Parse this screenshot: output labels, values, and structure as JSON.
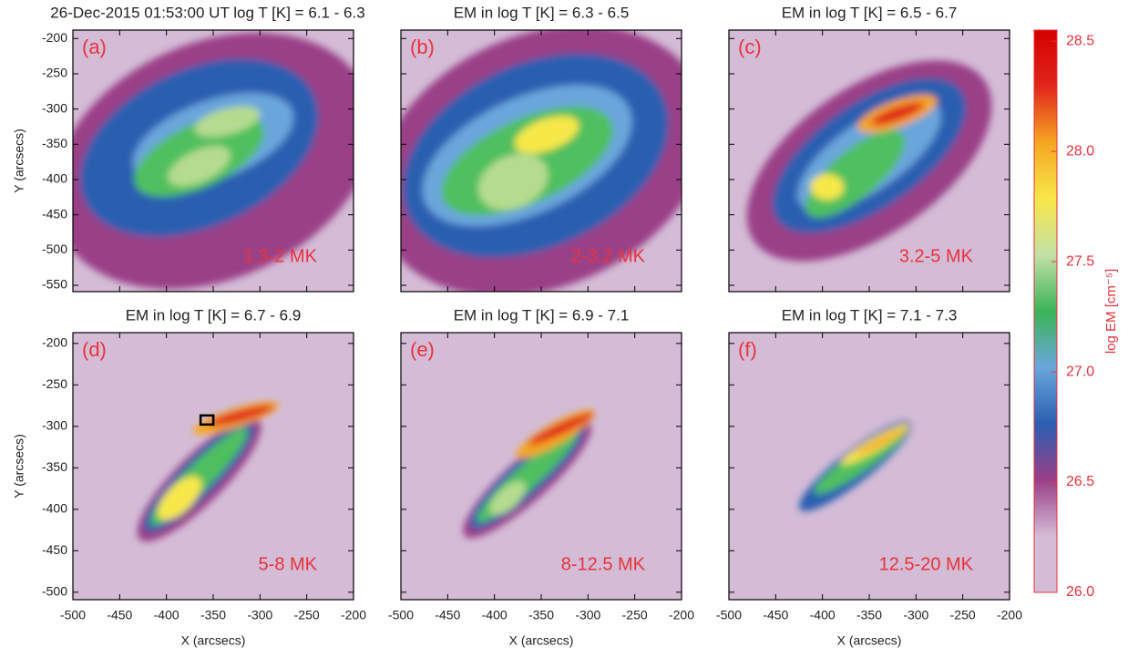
{
  "chart_data": [
    {
      "type": "heatmap",
      "title": "26-Dec-2015 01:53:00 UT log T [K] = 6.1 - 6.3",
      "panel_label": "(a)",
      "annotation": "1.3-2 MK",
      "ylabel": "Y (arcsecs)",
      "xlim": [
        -500,
        -200
      ],
      "xticks": [
        -500,
        -450,
        -400,
        -350,
        -300,
        -250,
        -200
      ],
      "ylim": [
        -559,
        -188
      ],
      "yticks": [
        -550,
        -500,
        -450,
        -400,
        -350,
        -300,
        -250,
        -200
      ]
    },
    {
      "type": "heatmap",
      "title": "EM in log T [K] = 6.3 - 6.5",
      "panel_label": "(b)",
      "annotation": "2-3.2 MK",
      "xlim": [
        -500,
        -200
      ],
      "xticks": [
        -500,
        -450,
        -400,
        -350,
        -300,
        -250,
        -200
      ],
      "ylim": [
        -559,
        -188
      ],
      "yticks": [
        -550,
        -500,
        -450,
        -400,
        -350,
        -300,
        -250,
        -200
      ]
    },
    {
      "type": "heatmap",
      "title": "EM in log T [K] = 6.5 - 6.7",
      "panel_label": "(c)",
      "annotation": "3.2-5 MK",
      "xlim": [
        -500,
        -200
      ],
      "xticks": [
        -500,
        -450,
        -400,
        -350,
        -300,
        -250,
        -200
      ],
      "ylim": [
        -559,
        -188
      ],
      "yticks": [
        -550,
        -500,
        -450,
        -400,
        -350,
        -300,
        -250,
        -200
      ]
    },
    {
      "type": "heatmap",
      "title": "EM in log T [K] = 6.7 - 6.9",
      "panel_label": "(d)",
      "annotation": "5-8 MK",
      "ylabel": "Y (arcsecs)",
      "xlabel": "X (arcsecs)",
      "xlim": [
        -500,
        -200
      ],
      "xticks": [
        -500,
        -450,
        -400,
        -350,
        -300,
        -250,
        -200
      ],
      "ylim": [
        -509,
        -187
      ],
      "yticks": [
        -500,
        -450,
        -400,
        -350,
        -300,
        -250,
        -200
      ]
    },
    {
      "type": "heatmap",
      "title": "EM in log T [K] = 6.9 - 7.1",
      "panel_label": "(e)",
      "annotation": "8-12.5 MK",
      "xlabel": "X (arcsecs)",
      "xlim": [
        -500,
        -200
      ],
      "xticks": [
        -500,
        -450,
        -400,
        -350,
        -300,
        -250,
        -200
      ],
      "ylim": [
        -509,
        -187
      ],
      "yticks": [
        -500,
        -450,
        -400,
        -350,
        -300,
        -250,
        -200
      ]
    },
    {
      "type": "heatmap",
      "title": "EM in log T [K] = 7.1 - 7.3",
      "panel_label": "(f)",
      "annotation": "12.5-20 MK",
      "xlabel": "X (arcsecs)",
      "xlim": [
        -500,
        -200
      ],
      "xticks": [
        -500,
        -450,
        -400,
        -350,
        -300,
        -250,
        -200
      ],
      "ylim": [
        -509,
        -187
      ],
      "yticks": [
        -500,
        -450,
        -400,
        -350,
        -300,
        -250,
        -200
      ]
    },
    {
      "type": "colorbar",
      "label": "log EM [cm⁻⁵]",
      "ylim": [
        26.0,
        28.55
      ],
      "yticks": [
        {
          "value": 26,
          "label": "26.0"
        },
        26.5,
        {
          "value": 27,
          "label": "27.0"
        },
        27.5,
        {
          "value": 28,
          "label": "28.0"
        },
        28.5
      ],
      "colormap": [
        "#d4bcd6",
        "#d4bcd6",
        "#9a3f86",
        "#2a5fb0",
        "#6aa6db",
        "#3cb457",
        "#c2e0a6",
        "#f7e84a",
        "#f5a623",
        "#e0261c",
        "#d50000"
      ]
    }
  ]
}
